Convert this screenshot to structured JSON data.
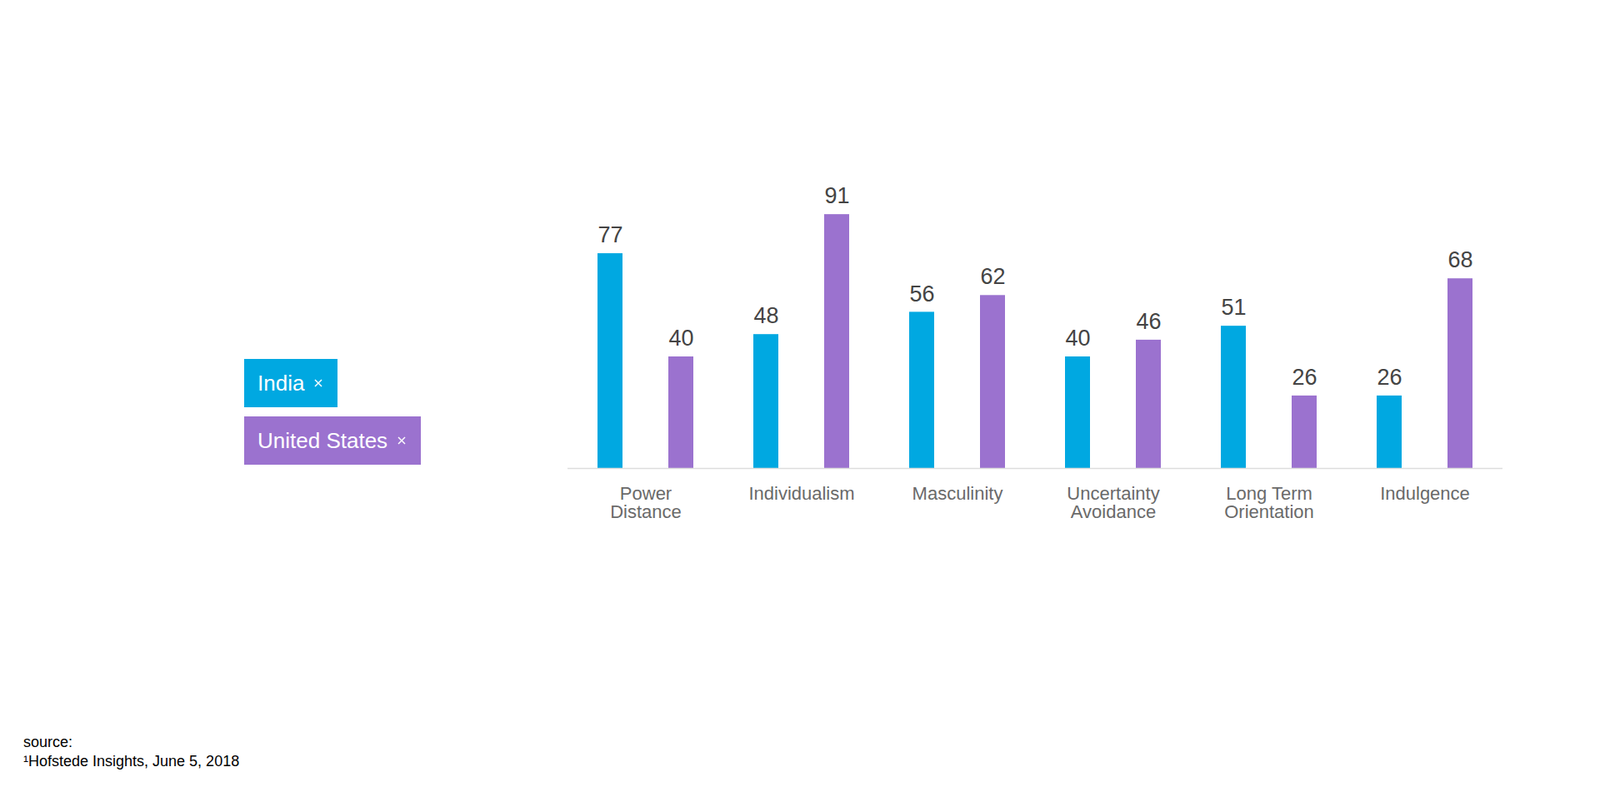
{
  "chart_data": {
    "type": "bar",
    "categories": [
      "Power Distance",
      "Individualism",
      "Masculinity",
      "Uncertainty Avoidance",
      "Long Term Orientation",
      "Indulgence"
    ],
    "series": [
      {
        "name": "India",
        "color": "#00a8e1",
        "values": [
          77,
          48,
          56,
          40,
          51,
          26
        ]
      },
      {
        "name": "United States",
        "color": "#9b72cf",
        "values": [
          40,
          91,
          62,
          46,
          26,
          68
        ]
      }
    ],
    "ylim": [
      0,
      100
    ],
    "yticks": [],
    "tick_labels": "x",
    "data_labels": true,
    "legend": "left",
    "caption": [
      "source:",
      "¹Hofstede Insights, June 5, 2018"
    ]
  }
}
